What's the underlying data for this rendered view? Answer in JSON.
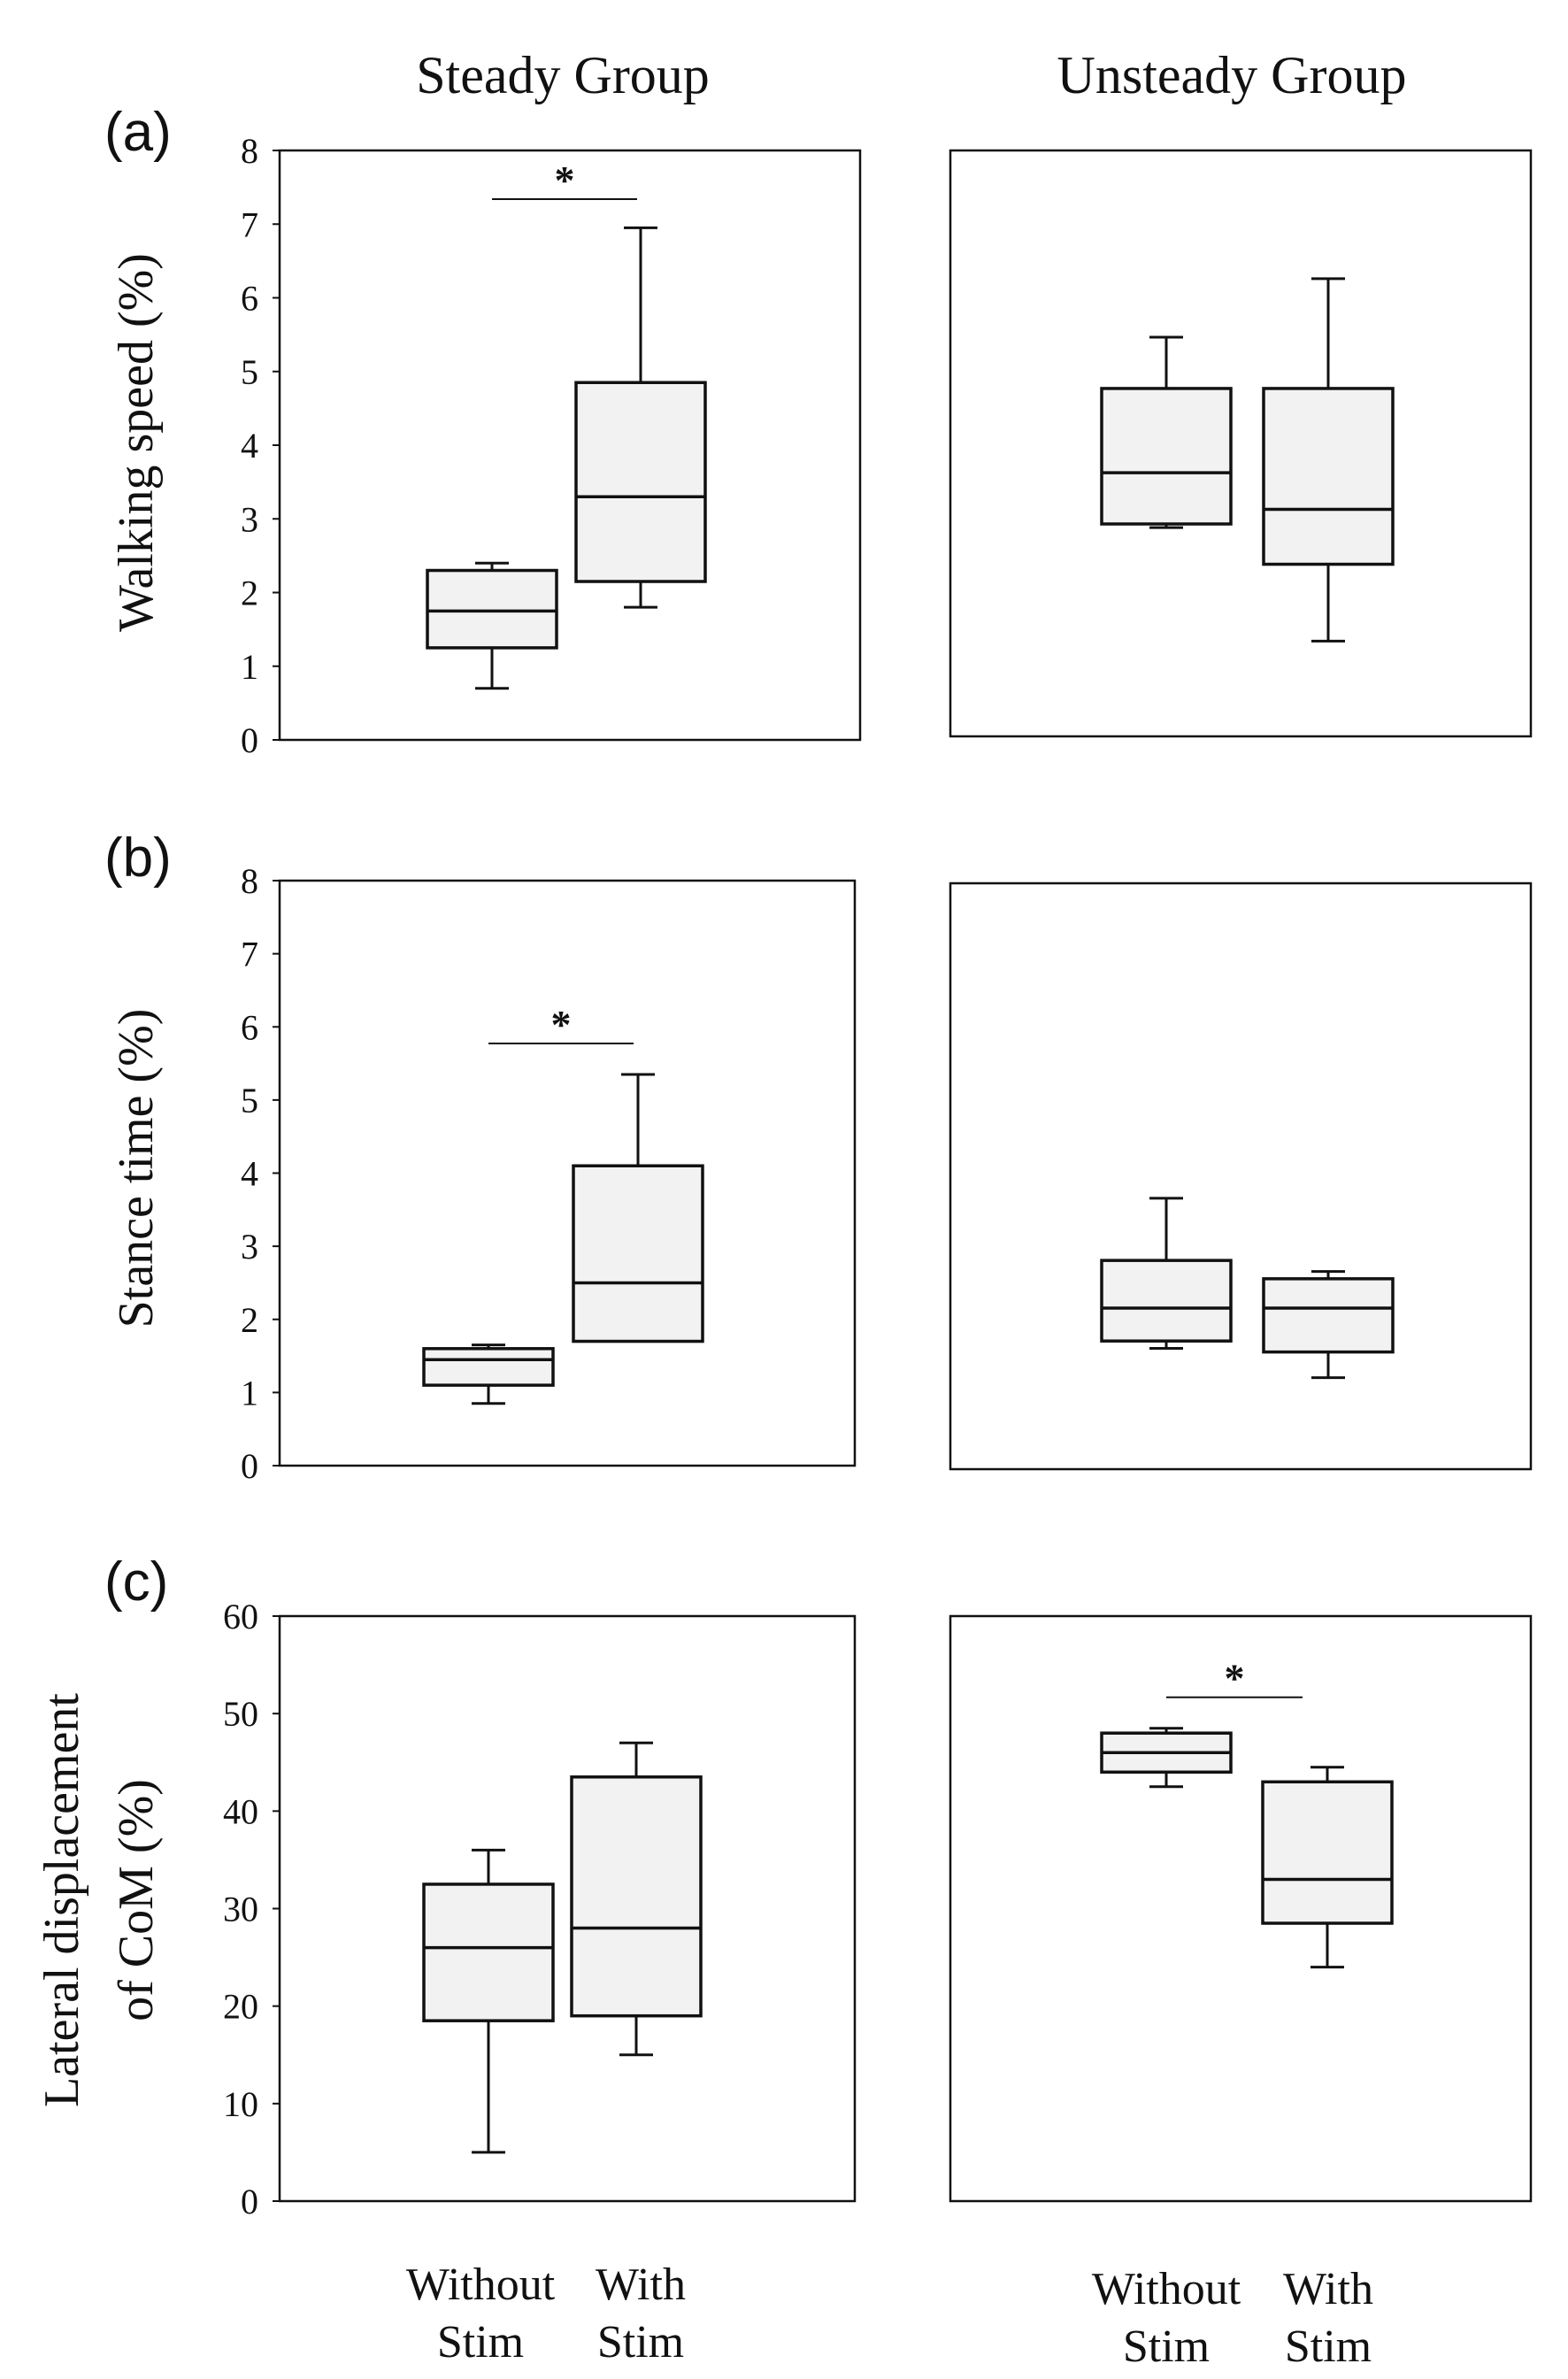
{
  "figure": {
    "columns": [
      "Steady Group",
      "Unsteady Group"
    ],
    "x_labels": {
      "steady": [
        [
          "Without",
          "Stim"
        ],
        [
          "With",
          "Stim"
        ]
      ],
      "unsteady": [
        [
          "Without",
          "Stim"
        ],
        [
          "With",
          "Stim"
        ]
      ]
    }
  },
  "colors": {
    "box_fill": "#f2f2f2",
    "stroke": "#111111"
  },
  "chart_data": [
    {
      "type": "boxplot",
      "panel_label": "(a)",
      "group": "Steady Group",
      "ylabel": [
        "Walking speed (%)"
      ],
      "ylim": [
        0,
        8
      ],
      "yticks": [
        0,
        1,
        2,
        3,
        4,
        5,
        6,
        7,
        8
      ],
      "categories": [
        "Without Stim",
        "With Stim"
      ],
      "boxes": [
        {
          "min": 0.7,
          "q1": 1.25,
          "median": 1.75,
          "q3": 2.3,
          "max": 2.4
        },
        {
          "min": 1.8,
          "q1": 2.15,
          "median": 3.3,
          "q3": 4.85,
          "max": 6.95
        }
      ],
      "significance": "*"
    },
    {
      "type": "boxplot",
      "panel_label": "",
      "group": "Unsteady Group",
      "ylim": [
        0,
        8
      ],
      "categories": [
        "Without Stim",
        "With Stim"
      ],
      "boxes": [
        {
          "min": 2.85,
          "q1": 2.9,
          "median": 3.6,
          "q3": 4.75,
          "max": 5.45
        },
        {
          "min": 1.3,
          "q1": 2.35,
          "median": 3.1,
          "q3": 4.75,
          "max": 6.25
        }
      ],
      "significance": ""
    },
    {
      "type": "boxplot",
      "panel_label": "(b)",
      "group": "Steady Group",
      "ylabel": [
        "Stance time (%)"
      ],
      "ylim": [
        0,
        8
      ],
      "yticks": [
        0,
        1,
        2,
        3,
        4,
        5,
        6,
        7,
        8
      ],
      "categories": [
        "Without Stim",
        "With Stim"
      ],
      "boxes": [
        {
          "min": 0.85,
          "q1": 1.1,
          "median": 1.45,
          "q3": 1.6,
          "max": 1.65
        },
        {
          "min": 1.7,
          "q1": 1.7,
          "median": 2.5,
          "q3": 4.1,
          "max": 5.35
        }
      ],
      "significance": "*"
    },
    {
      "type": "boxplot",
      "panel_label": "",
      "group": "Unsteady Group",
      "ylim": [
        0,
        8
      ],
      "categories": [
        "Without Stim",
        "With Stim"
      ],
      "boxes": [
        {
          "min": 1.65,
          "q1": 1.75,
          "median": 2.2,
          "q3": 2.85,
          "max": 3.7
        },
        {
          "min": 1.25,
          "q1": 1.6,
          "median": 2.2,
          "q3": 2.6,
          "max": 2.7
        }
      ],
      "significance": ""
    },
    {
      "type": "boxplot",
      "panel_label": "(c)",
      "group": "Steady Group",
      "ylabel": [
        "Lateral displacement",
        "of CoM (%)"
      ],
      "ylim": [
        0,
        60
      ],
      "yticks": [
        0,
        10,
        20,
        30,
        40,
        50,
        60
      ],
      "categories": [
        "Without Stim",
        "With Stim"
      ],
      "boxes": [
        {
          "min": 5,
          "q1": 18.5,
          "median": 26,
          "q3": 32.5,
          "max": 36
        },
        {
          "min": 15,
          "q1": 19,
          "median": 28,
          "q3": 43.5,
          "max": 47
        }
      ],
      "significance": ""
    },
    {
      "type": "boxplot",
      "panel_label": "",
      "group": "Unsteady Group",
      "ylim": [
        0,
        60
      ],
      "categories": [
        "Without Stim",
        "With Stim"
      ],
      "boxes": [
        {
          "min": 42.5,
          "q1": 44,
          "median": 46,
          "q3": 48,
          "max": 48.5
        },
        {
          "min": 24,
          "q1": 28.5,
          "median": 33,
          "q3": 43,
          "max": 44.5
        }
      ],
      "significance": "*"
    }
  ]
}
